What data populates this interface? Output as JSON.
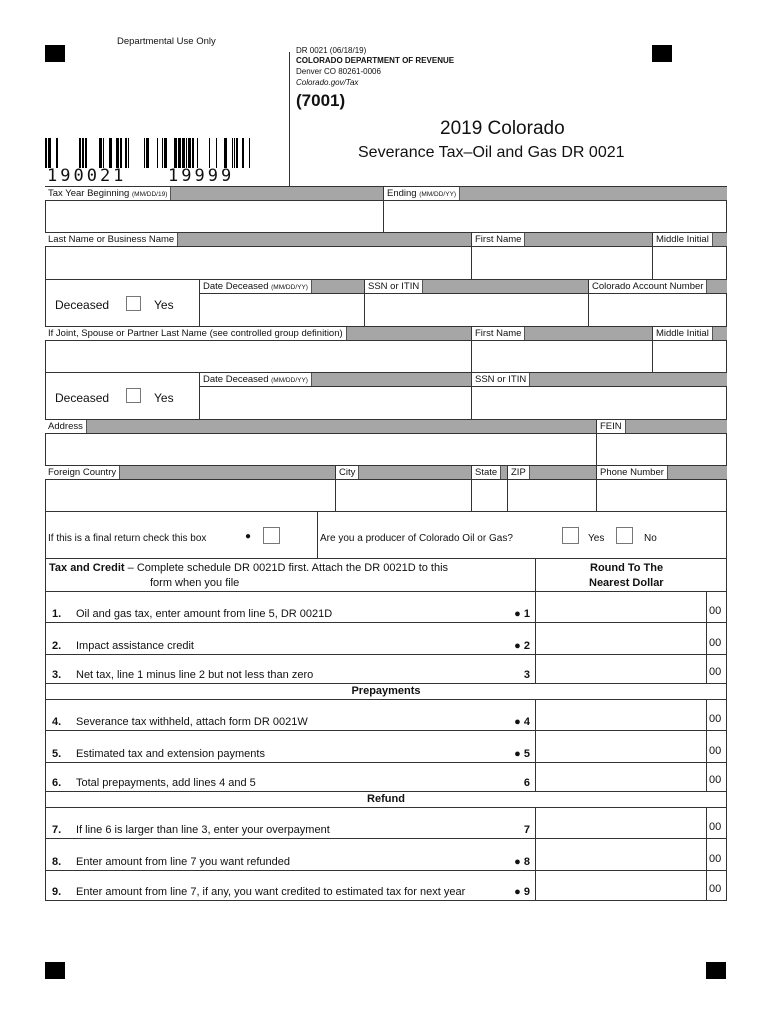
{
  "header": {
    "departmental_use": "Departmental Use Only",
    "form_code": "DR 0021 (06/18/19)",
    "agency": "COLORADO DEPARTMENT OF REVENUE",
    "address": "Denver CO 80261-0006",
    "website": "Colorado.gov/Tax",
    "code": "(7001)",
    "title_line1": "2019 Colorado",
    "title_line2": "Severance Tax–Oil and Gas DR 0021",
    "barcode_number_left": "190021",
    "barcode_number_right": "19999"
  },
  "fields": {
    "tax_year_beginning": "Tax Year Beginning",
    "tax_year_beginning_fmt": "(MM/DD/19)",
    "ending": "Ending",
    "ending_fmt": "(MM/DD/YY)",
    "last_name": "Last Name or Business Name",
    "first_name": "First Name",
    "middle_initial": "Middle Initial",
    "deceased": "Deceased",
    "yes": "Yes",
    "no": "No",
    "date_deceased": "Date Deceased",
    "date_fmt": "(MM/DD/YY)",
    "ssn": "SSN or ITIN",
    "co_account": "Colorado Account Number",
    "spouse_last_name": "If Joint, Spouse or Partner Last Name (see controlled group definition)",
    "address": "Address",
    "fein": "FEIN",
    "foreign_country": "Foreign Country",
    "city": "City",
    "state": "State",
    "zip": "ZIP",
    "phone": "Phone Number",
    "final_return": "If this is a final return check this box",
    "producer_question": "Are you a producer of Colorado Oil or Gas?"
  },
  "tax_section": {
    "heading_bold": "Tax and Credit",
    "heading_rest": " – Complete schedule DR 0021D first. Attach the DR 0021D to this",
    "heading_line2": "form when you file",
    "round_line1": "Round To The",
    "round_line2": "Nearest Dollar",
    "prepayments": "Prepayments",
    "refund": "Refund",
    "cents": "00",
    "lines": [
      {
        "num": "1.",
        "text": "Oil and gas tax, enter amount from line 5, DR 0021D",
        "ref": "● 1"
      },
      {
        "num": "2.",
        "text": "Impact assistance credit",
        "ref": "● 2"
      },
      {
        "num": "3.",
        "text": "Net tax, line 1 minus line 2 but not less than zero",
        "ref": "3"
      },
      {
        "num": "4.",
        "text": "Severance tax withheld, attach form DR 0021W",
        "ref": "● 4"
      },
      {
        "num": "5.",
        "text": "Estimated tax and extension payments",
        "ref": "● 5"
      },
      {
        "num": "6.",
        "text": "Total prepayments, add lines 4 and 5",
        "ref": "6"
      },
      {
        "num": "7.",
        "text": "If line 6 is larger than line 3, enter your overpayment",
        "ref": "7"
      },
      {
        "num": "8.",
        "text": "Enter amount from line 7 you want refunded",
        "ref": "● 8"
      },
      {
        "num": "9.",
        "text": "Enter amount from line 7, if any, you want credited to estimated tax for next year",
        "ref": "● 9"
      }
    ]
  }
}
